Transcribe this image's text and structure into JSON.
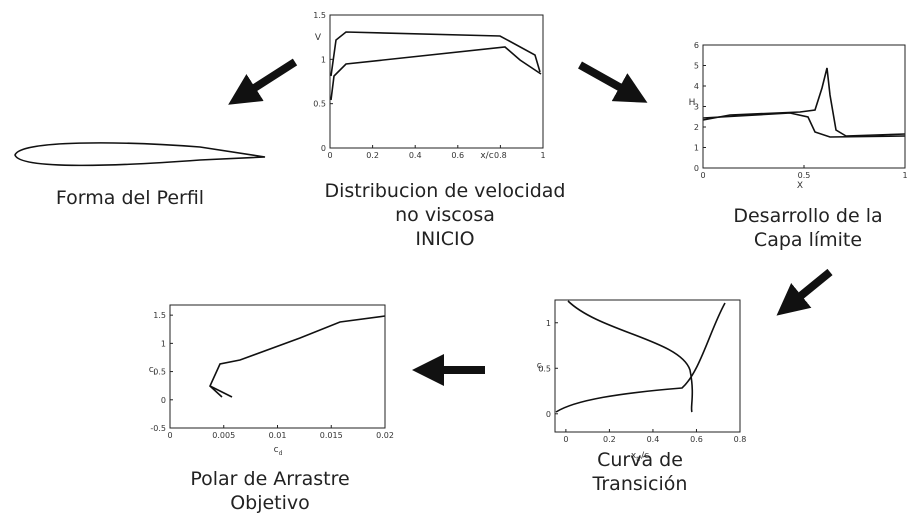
{
  "profile": {
    "caption": [
      "Forma del Perfil"
    ]
  },
  "panels": {
    "velocity": {
      "xlim": [
        0,
        1
      ],
      "ylim": [
        0,
        1.5
      ],
      "xticks": [
        0,
        0.2,
        0.4,
        0.6,
        0.8,
        1
      ],
      "yticks": [
        0,
        0.5,
        1,
        1.5
      ],
      "xlabel": "x/c",
      "ylabel": "V",
      "caption": [
        "Distribucion de velocidad",
        "no viscosa",
        "INICIO"
      ]
    },
    "boundary": {
      "xlim": [
        0,
        1
      ],
      "ylim": [
        0,
        6
      ],
      "xticks": [
        0,
        0.5,
        1
      ],
      "yticks": [
        0,
        1,
        2,
        3,
        4,
        5,
        6
      ],
      "xlabel": "X",
      "ylabel": "H",
      "caption": [
        "Desarrollo de la",
        "Capa límite"
      ]
    },
    "transition": {
      "xlim": [
        -0.05,
        0.8
      ],
      "ylim": [
        -0.2,
        1.25
      ],
      "xticks": [
        0,
        0.2,
        0.4,
        0.6,
        0.8
      ],
      "yticks": [
        0,
        0.5,
        1
      ],
      "xlabel": "x",
      "xlabel_sub": "tr",
      "xlabel_tail": "/c",
      "ylabel": "c",
      "ylabel_sub": "l",
      "caption": [
        "Curva de",
        "Transición"
      ]
    },
    "polar": {
      "xlim": [
        0,
        0.02
      ],
      "ylim": [
        -0.5,
        1.68
      ],
      "xticks": [
        0,
        0.005,
        0.01,
        0.015,
        0.02
      ],
      "yticks": [
        -0.5,
        0,
        0.5,
        1,
        1.5
      ],
      "xlabel": "c",
      "xlabel_sub": "d",
      "ylabel": "c",
      "ylabel_sub": "l",
      "caption": [
        "Polar de Arrastre",
        "Objetivo"
      ]
    }
  }
}
